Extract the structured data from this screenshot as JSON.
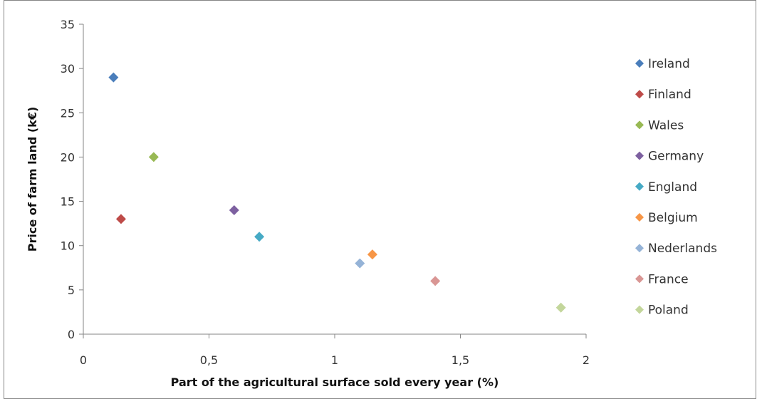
{
  "chart_data": {
    "type": "scatter",
    "xlabel": "Part of the agricultural surface sold every year (%)",
    "ylabel": "Price of farm land (k€)",
    "xlim": [
      0,
      2
    ],
    "ylim": [
      0,
      35
    ],
    "x_ticks": [
      "0",
      "0,5",
      "1",
      "1,5",
      "2"
    ],
    "y_ticks": [
      "0",
      "5",
      "10",
      "15",
      "20",
      "25",
      "30",
      "35"
    ],
    "grid": false,
    "legend_position": "right",
    "marker": "diamond",
    "series": [
      {
        "name": "Ireland",
        "x": 0.12,
        "y": 29,
        "color": "#4a7ebb"
      },
      {
        "name": "Finland",
        "x": 0.15,
        "y": 13,
        "color": "#be4b48"
      },
      {
        "name": "Wales",
        "x": 0.28,
        "y": 20,
        "color": "#98b954"
      },
      {
        "name": "Germany",
        "x": 0.6,
        "y": 14,
        "color": "#7d60a0"
      },
      {
        "name": "England",
        "x": 0.7,
        "y": 11,
        "color": "#46aac5"
      },
      {
        "name": "Belgium",
        "x": 1.15,
        "y": 9,
        "color": "#f79646"
      },
      {
        "name": "Nederlands",
        "x": 1.1,
        "y": 8,
        "color": "#95b3d7"
      },
      {
        "name": "France",
        "x": 1.4,
        "y": 6,
        "color": "#d99694"
      },
      {
        "name": "Poland",
        "x": 1.9,
        "y": 3,
        "color": "#c3d69b"
      }
    ]
  }
}
